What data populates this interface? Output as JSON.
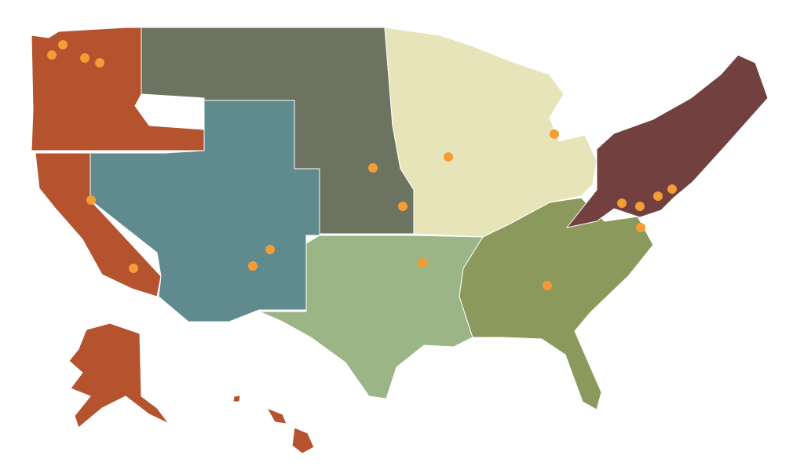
{
  "map": {
    "regions": [
      {
        "color": "#b4532e"
      },
      {
        "color": "#5f8a8e"
      },
      {
        "color": "#6c7461"
      },
      {
        "color": "#e7e4ba"
      },
      {
        "color": "#9bb587"
      },
      {
        "color": "#8b9a5c"
      },
      {
        "color": "#71403f"
      }
    ],
    "markers": {
      "color": "#f59c34"
    }
  }
}
